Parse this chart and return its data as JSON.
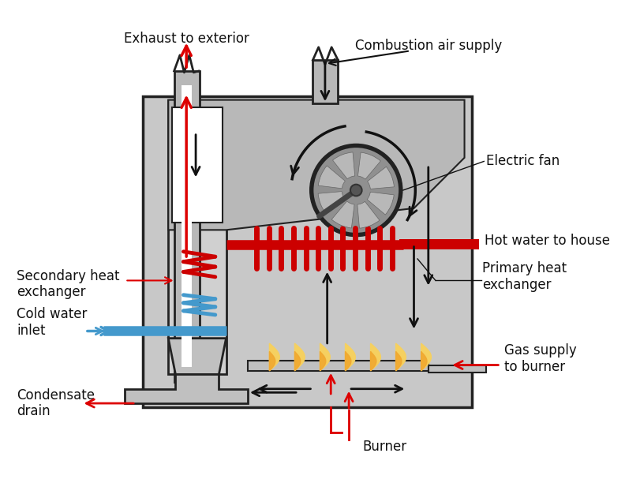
{
  "background_color": "#ffffff",
  "labels": {
    "exhaust": "Exhaust to exterior",
    "combustion": "Combustion air supply",
    "electric_fan": "Electric fan",
    "hot_water": "Hot water to house",
    "secondary_hx": "Secondary heat\nexchanger",
    "cold_water": "Cold water\ninlet",
    "condensate": "Condensate\ndrain",
    "primary_hx": "Primary heat\nexchanger",
    "gas_supply": "Gas supply\nto burner",
    "burner": "Burner"
  },
  "colors": {
    "white": "#ffffff",
    "gray_furnace": "#c8c8c8",
    "gray_inner": "#b0b0b0",
    "gray_flue": "#b8b8b8",
    "gray_dark": "#888888",
    "gray_fan": "#909090",
    "gray_burner": "#b0b0b0",
    "red": "#cc0000",
    "red_arrow": "#dd0000",
    "blue": "#4499cc",
    "black": "#111111",
    "flame_yellow": "#f5d060",
    "flame_orange": "#f0a830",
    "outline": "#222222"
  }
}
